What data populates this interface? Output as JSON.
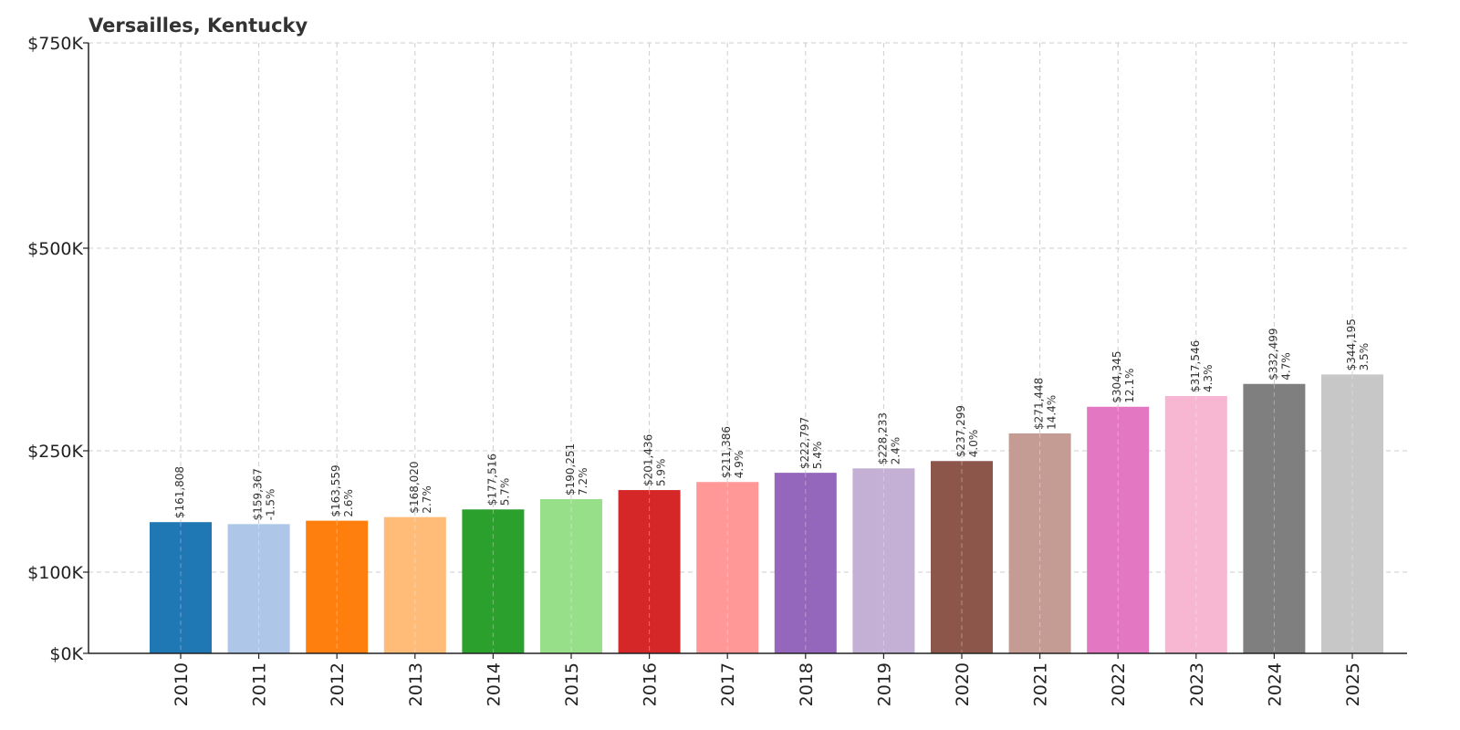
{
  "chart_data": {
    "type": "bar",
    "title": "Versailles, Kentucky",
    "xlabel": "",
    "ylabel": "",
    "categories": [
      "2010",
      "2011",
      "2012",
      "2013",
      "2014",
      "2015",
      "2016",
      "2017",
      "2018",
      "2019",
      "2020",
      "2021",
      "2022",
      "2023",
      "2024",
      "2025"
    ],
    "values": [
      161808,
      159367,
      163559,
      168020,
      177516,
      190251,
      201436,
      211386,
      222797,
      228233,
      237299,
      271448,
      304345,
      317546,
      332499,
      344195
    ],
    "value_labels": [
      "$161,808",
      "$159,367",
      "$163,559",
      "$168,020",
      "$177,516",
      "$190,251",
      "$201,436",
      "$211,386",
      "$222,797",
      "$228,233",
      "$237,299",
      "$271,448",
      "$304,345",
      "$317,546",
      "$332,499",
      "$344,195"
    ],
    "change_labels": [
      "",
      "-1.5%",
      "2.6%",
      "2.7%",
      "5.7%",
      "7.2%",
      "5.9%",
      "4.9%",
      "5.4%",
      "2.4%",
      "4.0%",
      "14.4%",
      "12.1%",
      "4.3%",
      "4.7%",
      "3.5%"
    ],
    "colors": [
      "#1f77b4",
      "#aec7e8",
      "#ff7f0e",
      "#ffbb78",
      "#2ca02c",
      "#98df8a",
      "#d62728",
      "#ff9896",
      "#9467bd",
      "#c5b0d5",
      "#8c564b",
      "#c49c94",
      "#e377c2",
      "#f7b6d2",
      "#7f7f7f",
      "#c7c7c7"
    ],
    "y_ticks": [
      0,
      100000,
      250000,
      500000,
      750000
    ],
    "y_tick_labels": [
      "$0K",
      "$100K",
      "$250K",
      "$500K",
      "$750K"
    ],
    "y_scale": "symlog",
    "ylim": [
      0,
      750000
    ],
    "grid": true,
    "legend": "none"
  }
}
